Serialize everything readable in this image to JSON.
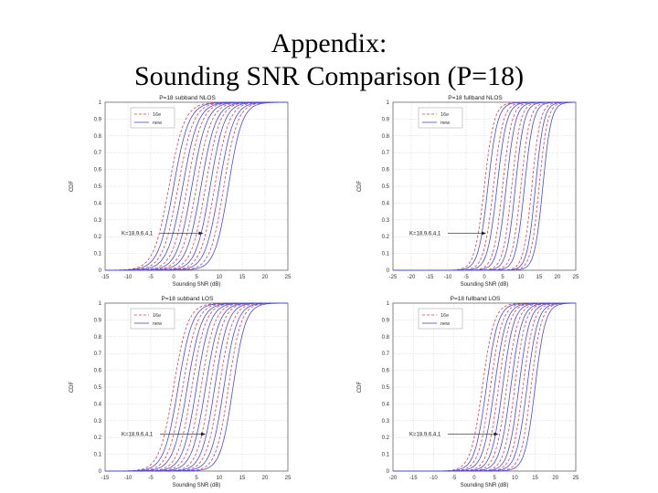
{
  "slide": {
    "title_line1": "Appendix:",
    "title_line2": "Sounding SNR Comparison (P=18)"
  },
  "style": {
    "series_colors": [
      "#d0406a",
      "#4a4ad8"
    ],
    "grid_color": "#cfcfcf"
  },
  "chart_data": [
    {
      "type": "line",
      "title": "P=18 subband NLOS",
      "xlabel": "Sounding SNR (dB)",
      "ylabel": "CDF",
      "xlim": [
        -15,
        25
      ],
      "ylim": [
        0,
        1
      ],
      "xticks": [
        -15,
        -10,
        -5,
        0,
        5,
        10,
        15,
        20,
        25
      ],
      "yticks": [
        0,
        0.1,
        0.2,
        0.3,
        0.4,
        0.5,
        0.6,
        0.7,
        0.8,
        0.9,
        1
      ],
      "grid": true,
      "legend_position": "top-left",
      "legend": [
        "16e",
        "new"
      ],
      "annotation": "K=18,9,6,4,1",
      "annotation_target": [
        6.5,
        0.22
      ],
      "series": [
        {
          "name": "16e",
          "style": "dashed",
          "medians": [
            -1,
            1,
            3,
            5,
            7,
            9,
            11
          ],
          "spreads": [
            2.8,
            2.8,
            2.7,
            2.7,
            2.6,
            2.6,
            2.5
          ]
        },
        {
          "name": "new",
          "style": "solid",
          "medians": [
            0,
            2,
            4,
            6,
            8,
            10,
            12
          ],
          "spreads": [
            2.8,
            2.8,
            2.7,
            2.7,
            2.6,
            2.6,
            2.5
          ]
        }
      ]
    },
    {
      "type": "line",
      "title": "P=18 fullband NLOS",
      "xlabel": "Sounding SNR (dB)",
      "ylabel": "CDF",
      "xlim": [
        -25,
        25
      ],
      "ylim": [
        0,
        1
      ],
      "xticks": [
        -25,
        -20,
        -15,
        -10,
        -5,
        0,
        5,
        10,
        15,
        20,
        25
      ],
      "yticks": [
        0,
        0.1,
        0.2,
        0.3,
        0.4,
        0.5,
        0.6,
        0.7,
        0.8,
        0.9,
        1
      ],
      "grid": true,
      "legend_position": "top-left",
      "legend": [
        "16e",
        "new"
      ],
      "annotation": "K=18,9,6,4,1",
      "annotation_target": [
        0.5,
        0.22
      ],
      "series": [
        {
          "name": "16e",
          "style": "dashed",
          "medians": [
            0,
            2.5,
            5,
            7.5,
            10,
            13,
            15
          ],
          "spreads": [
            2.2,
            2.2,
            2.1,
            2.0,
            2.0,
            1.9,
            1.9
          ]
        },
        {
          "name": "new",
          "style": "solid",
          "medians": [
            1,
            3.5,
            6,
            8.5,
            11,
            14,
            16
          ],
          "spreads": [
            2.2,
            2.2,
            2.1,
            2.0,
            2.0,
            1.9,
            1.9
          ]
        }
      ]
    },
    {
      "type": "line",
      "title": "P=18 subband LOS",
      "xlabel": "Sounding SNR (dB)",
      "ylabel": "CDF",
      "xlim": [
        -15,
        25
      ],
      "ylim": [
        0,
        1
      ],
      "xticks": [
        -15,
        -10,
        -5,
        0,
        5,
        10,
        15,
        20,
        25
      ],
      "yticks": [
        0,
        0.1,
        0.2,
        0.3,
        0.4,
        0.5,
        0.6,
        0.7,
        0.8,
        0.9,
        1
      ],
      "grid": true,
      "legend_position": "top-left",
      "legend": [
        "16e",
        "new"
      ],
      "annotation": "K=18,9,6,4,1",
      "annotation_target": [
        7,
        0.22
      ],
      "series": [
        {
          "name": "16e",
          "style": "dashed",
          "medians": [
            0,
            2,
            4,
            6,
            8,
            10,
            12
          ],
          "spreads": [
            2.6,
            2.6,
            2.5,
            2.5,
            2.4,
            2.4,
            2.3
          ]
        },
        {
          "name": "new",
          "style": "solid",
          "medians": [
            1,
            3,
            5,
            7,
            9,
            11,
            13
          ],
          "spreads": [
            2.6,
            2.6,
            2.5,
            2.5,
            2.4,
            2.4,
            2.3
          ]
        }
      ]
    },
    {
      "type": "line",
      "title": "P=18 fullband LOS",
      "xlabel": "Sounding SNR (dB)",
      "ylabel": "CDF",
      "xlim": [
        -20,
        25
      ],
      "ylim": [
        0,
        1
      ],
      "xticks": [
        -20,
        -15,
        -10,
        -5,
        0,
        5,
        10,
        15,
        20,
        25
      ],
      "yticks": [
        0,
        0.1,
        0.2,
        0.3,
        0.4,
        0.5,
        0.6,
        0.7,
        0.8,
        0.9,
        1
      ],
      "grid": true,
      "legend_position": "top-left",
      "legend": [
        "16e",
        "new"
      ],
      "annotation": "K=18,9,6,4,1",
      "annotation_target": [
        6,
        0.22
      ],
      "series": [
        {
          "name": "16e",
          "style": "dashed",
          "medians": [
            2,
            4,
            6,
            8,
            10,
            12,
            14
          ],
          "spreads": [
            2.4,
            2.4,
            2.3,
            2.3,
            2.2,
            2.2,
            2.1
          ]
        },
        {
          "name": "new",
          "style": "solid",
          "medians": [
            3,
            5,
            7,
            9,
            11,
            13,
            15
          ],
          "spreads": [
            2.4,
            2.4,
            2.3,
            2.3,
            2.2,
            2.2,
            2.1
          ]
        }
      ]
    }
  ]
}
